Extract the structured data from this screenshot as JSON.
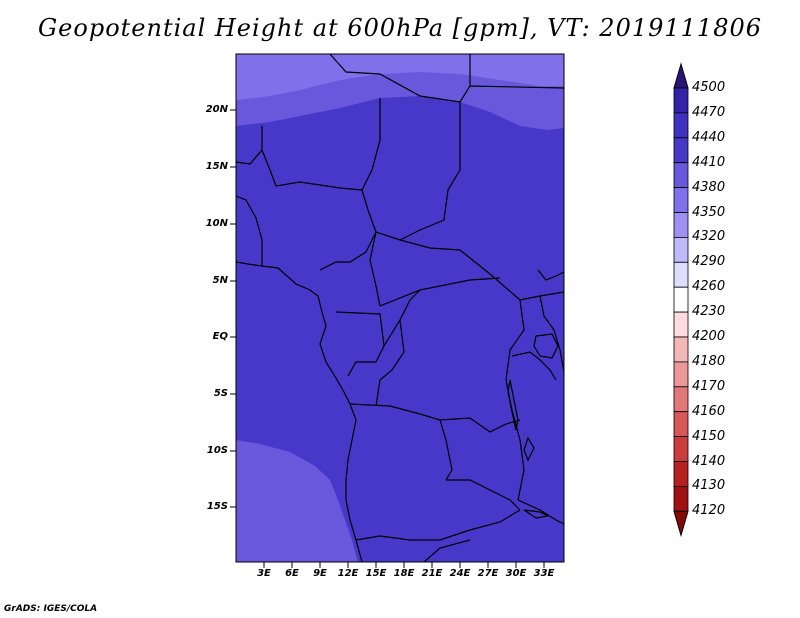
{
  "title": "Geopotential Height at 600hPa [gpm], VT: 2019111806",
  "footer": "GrADS: IGES/COLA",
  "map": {
    "variable": "Geopotential Height",
    "level": "600hPa",
    "units": "gpm",
    "valid_time": "2019111806",
    "lon_range": [
      0,
      35
    ],
    "lat_range": [
      -20,
      25
    ],
    "lat_ticks": [
      "20N",
      "15N",
      "10N",
      "5N",
      "EQ",
      "5S",
      "10S",
      "15S"
    ],
    "lon_ticks": [
      "3E",
      "6E",
      "9E",
      "12E",
      "15E",
      "18E",
      "21E",
      "24E",
      "27E",
      "30E",
      "33E"
    ],
    "field_colors": {
      "band_4410_4440": "#4638c8",
      "band_4380_4410": "#6a58dc",
      "band_4350_4380": "#8070ea"
    }
  },
  "colorbar": {
    "levels": [
      "4500",
      "4470",
      "4440",
      "4410",
      "4380",
      "4350",
      "4320",
      "4290",
      "4260",
      "4230",
      "4200",
      "4180",
      "4170",
      "4160",
      "4150",
      "4140",
      "4130",
      "4120"
    ],
    "colors": [
      "#2a1478",
      "#3422a8",
      "#4032c0",
      "#4638c8",
      "#6a58dc",
      "#8070ea",
      "#a090f4",
      "#c0b8f8",
      "#e0dcfc",
      "#ffffff",
      "#fcdcdc",
      "#f4b8b8",
      "#ec9898",
      "#e07878",
      "#d85858",
      "#cc3c3c",
      "#b82020",
      "#a01010",
      "#880808"
    ]
  }
}
